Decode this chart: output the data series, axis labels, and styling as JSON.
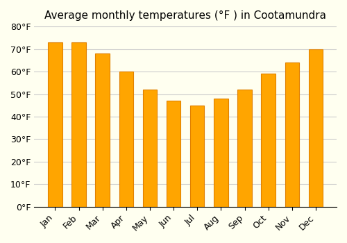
{
  "title": "Average monthly temperatures (°F ) in Cootamundra",
  "months": [
    "Jan",
    "Feb",
    "Mar",
    "Apr",
    "May",
    "Jun",
    "Jul",
    "Aug",
    "Sep",
    "Oct",
    "Nov",
    "Dec"
  ],
  "values": [
    73,
    73,
    68,
    60,
    52,
    47,
    45,
    48,
    52,
    59,
    64,
    70
  ],
  "bar_color": "#FFA500",
  "bar_edge_color": "#E08000",
  "ylim": [
    0,
    80
  ],
  "yticks": [
    0,
    10,
    20,
    30,
    40,
    50,
    60,
    70,
    80
  ],
  "ylabel_suffix": "°F",
  "background_color": "#FFFFF0",
  "grid_color": "#CCCCCC",
  "title_fontsize": 11,
  "tick_fontsize": 9
}
